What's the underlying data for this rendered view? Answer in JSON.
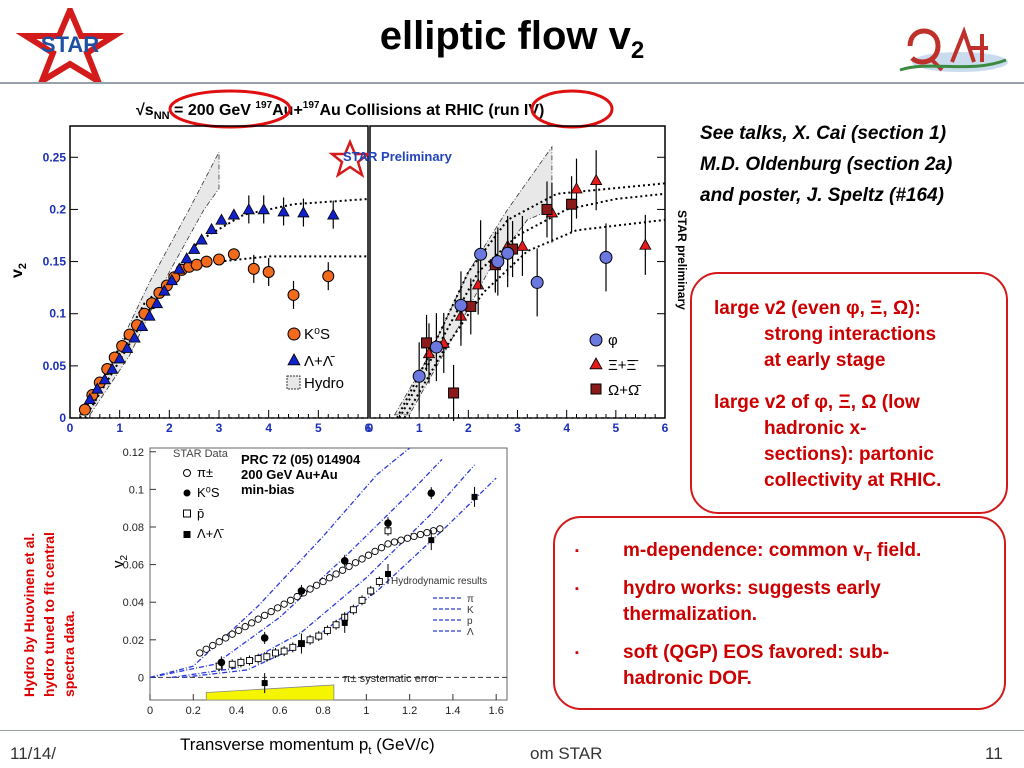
{
  "slide": {
    "title_main": "elliptic flow v",
    "title_sub": "2",
    "footer_left": "11/14/",
    "footer_center": "om STAR",
    "page_number": "11"
  },
  "logos": {
    "star": "STAR"
  },
  "notes": [
    "See talks, X. Cai (section 1)",
    "M.D. Oldenburg (section 2a)",
    "and poster, J. Speltz (#164)"
  ],
  "box1": {
    "b1": "large v2 (even φ, Ξ, Ω):",
    "b1_cont1": "strong interactions",
    "b1_cont2": "at early stage",
    "b2": "large v2 of φ, Ξ, Ω (low",
    "b2_cont1": "hadronic x-",
    "b2_cont2": "sections): partonic",
    "b2_cont3": "collectivity at RHIC."
  },
  "box2": {
    "bullet_marker": "▪",
    "i1_a": "m-dependence: common v",
    "i1_sub": "T",
    "i1_b": " field.",
    "i2_a": "hydro works: suggests early",
    "i2_b": "thermalization.",
    "i3_a": "soft (QGP) EOS favored: sub-",
    "i3_b": "hadronic DOF."
  },
  "sidenote": [
    "Hydro by Huovinen et al.",
    "hydro tuned to fit central",
    "spectra data."
  ],
  "top_plot": {
    "header_pre": "√s",
    "header_sub": "NN",
    "header_mid": " = 200 GeV ",
    "header_a": "197",
    "header_au1": "Au+",
    "header_b": "197",
    "header_au2": "Au Collisions at RHIC (run IV)",
    "star_label": "STAR Preliminary",
    "side_label": "STAR preliminary",
    "ylabel": "v",
    "ylabel_sub": "2",
    "legend_left": [
      "K⁰S",
      "Λ+Λ̄",
      "Hydro"
    ],
    "legend_right": [
      "φ",
      "Ξ+Ξ̄",
      "Ω+Ω̄"
    ],
    "colors": {
      "kaon": "#f26b1d",
      "lambda": "#1122cc",
      "phi": "#6a78e0",
      "xi": "#e31b1b",
      "omega": "#8b1a1a",
      "circle": "#e01010"
    }
  },
  "chart_data": [
    {
      "type": "scatter",
      "panel": "left",
      "xlim": [
        0,
        6
      ],
      "ylim": [
        0,
        0.28
      ],
      "xticks": [
        "0",
        "1",
        "2",
        "3",
        "4",
        "5",
        "6"
      ],
      "yticks": [
        "0",
        "0.05",
        "0.1",
        "0.15",
        "0.2",
        "0.25"
      ],
      "series": [
        {
          "name": "K⁰S",
          "x": [
            0.3,
            0.45,
            0.6,
            0.75,
            0.9,
            1.05,
            1.2,
            1.35,
            1.5,
            1.65,
            1.8,
            1.95,
            2.1,
            2.25,
            2.4,
            2.55,
            2.75,
            3.0,
            3.3,
            3.7,
            4.0,
            4.5,
            5.2
          ],
          "y": [
            0.008,
            0.022,
            0.034,
            0.047,
            0.058,
            0.069,
            0.08,
            0.089,
            0.1,
            0.11,
            0.12,
            0.127,
            0.135,
            0.142,
            0.145,
            0.147,
            0.15,
            0.152,
            0.157,
            0.143,
            0.14,
            0.118,
            0.136
          ]
        },
        {
          "name": "Λ+Λ̄",
          "x": [
            0.4,
            0.55,
            0.7,
            0.85,
            1.0,
            1.15,
            1.3,
            1.45,
            1.6,
            1.75,
            1.9,
            2.05,
            2.2,
            2.35,
            2.5,
            2.65,
            2.85,
            3.05,
            3.3,
            3.6,
            3.9,
            4.3,
            4.7,
            5.3
          ],
          "y": [
            0.018,
            0.028,
            0.037,
            0.047,
            0.057,
            0.067,
            0.077,
            0.088,
            0.098,
            0.11,
            0.122,
            0.132,
            0.143,
            0.153,
            0.162,
            0.171,
            0.181,
            0.19,
            0.195,
            0.2,
            0.2,
            0.198,
            0.197,
            0.195
          ]
        }
      ]
    },
    {
      "type": "scatter",
      "panel": "right",
      "xlim": [
        0,
        6
      ],
      "ylim": [
        0,
        0.28
      ],
      "xticks": [
        "0",
        "1",
        "2",
        "3",
        "4",
        "5",
        "6"
      ],
      "series": [
        {
          "name": "φ",
          "x": [
            1.0,
            1.35,
            1.85,
            2.25,
            2.6,
            2.8,
            3.4,
            4.8
          ],
          "y": [
            0.04,
            0.068,
            0.108,
            0.157,
            0.15,
            0.158,
            0.13,
            0.154
          ]
        },
        {
          "name": "Ξ+Ξ̄",
          "x": [
            1.2,
            1.5,
            1.85,
            2.2,
            2.55,
            2.8,
            3.1,
            3.7,
            4.2,
            4.6,
            5.6
          ],
          "y": [
            0.062,
            0.072,
            0.098,
            0.128,
            0.15,
            0.165,
            0.165,
            0.197,
            0.22,
            0.228,
            0.166
          ]
        },
        {
          "name": "Ω+Ω̄",
          "x": [
            1.15,
            1.7,
            2.05,
            2.55,
            2.9,
            3.6,
            4.1
          ],
          "y": [
            0.072,
            0.024,
            0.107,
            0.147,
            0.162,
            0.2,
            0.205
          ]
        }
      ]
    },
    {
      "type": "scatter",
      "panel": "bottom",
      "title_lines": [
        "PRC 72 (05) 014904",
        "200 GeV Au+Au",
        "min-bias"
      ],
      "star_data": "STAR Data",
      "xlabel": "Transverse momentum p",
      "xlabel_sub": "t",
      "xlabel_unit": " (GeV/c)",
      "ylabel": "v",
      "ylabel_sub": "2",
      "xlim": [
        0,
        1.65
      ],
      "ylim": [
        -0.012,
        0.122
      ],
      "xticks": [
        "0",
        "0.2",
        "0.4",
        "0.6",
        "0.8",
        "1",
        "1.2",
        "1.4",
        "1.6"
      ],
      "yticks": [
        "0",
        "0.02",
        "0.04",
        "0.06",
        "0.08",
        "0.1",
        "0.12"
      ],
      "legend": [
        "π±",
        "K⁰S",
        "p̄",
        "Λ+Λ̄"
      ],
      "hydro_title": "Hydrodynamic results",
      "hydro_legend": [
        "π",
        "K",
        "p",
        "Λ"
      ],
      "syst_label": "π± systematic error",
      "series": [
        {
          "name": "π±",
          "x": [
            0.23,
            0.26,
            0.29,
            0.32,
            0.35,
            0.38,
            0.41,
            0.44,
            0.47,
            0.5,
            0.53,
            0.56,
            0.59,
            0.62,
            0.65,
            0.68,
            0.71,
            0.74,
            0.77,
            0.8,
            0.83,
            0.86,
            0.89,
            0.92,
            0.95,
            0.98,
            1.01,
            1.04,
            1.07,
            1.1,
            1.13,
            1.16,
            1.19,
            1.22,
            1.25,
            1.28,
            1.31,
            1.34
          ],
          "y": [
            0.013,
            0.015,
            0.017,
            0.019,
            0.021,
            0.023,
            0.025,
            0.027,
            0.029,
            0.031,
            0.033,
            0.035,
            0.037,
            0.039,
            0.041,
            0.043,
            0.045,
            0.047,
            0.049,
            0.051,
            0.053,
            0.055,
            0.057,
            0.059,
            0.061,
            0.063,
            0.065,
            0.067,
            0.069,
            0.071,
            0.072,
            0.073,
            0.074,
            0.075,
            0.076,
            0.077,
            0.078,
            0.079
          ]
        },
        {
          "name": "K⁰S",
          "x": [
            0.33,
            0.53,
            0.7,
            0.9,
            1.1,
            1.3
          ],
          "y": [
            0.008,
            0.021,
            0.046,
            0.062,
            0.082,
            0.098
          ]
        },
        {
          "name": "p̄",
          "x": [
            0.32,
            0.38,
            0.42,
            0.46,
            0.5,
            0.54,
            0.58,
            0.62,
            0.66,
            0.7,
            0.74,
            0.78,
            0.82,
            0.86,
            0.9,
            0.94,
            0.98,
            1.02,
            1.06,
            1.1
          ],
          "y": [
            0.006,
            0.007,
            0.008,
            0.009,
            0.01,
            0.011,
            0.013,
            0.014,
            0.016,
            0.018,
            0.02,
            0.022,
            0.025,
            0.028,
            0.032,
            0.036,
            0.041,
            0.046,
            0.051,
            0.078
          ]
        },
        {
          "name": "Λ+Λ̄",
          "x": [
            0.53,
            0.7,
            0.9,
            1.1,
            1.3,
            1.5
          ],
          "y": [
            -0.003,
            0.018,
            0.029,
            0.055,
            0.073,
            0.096
          ]
        }
      ]
    }
  ]
}
